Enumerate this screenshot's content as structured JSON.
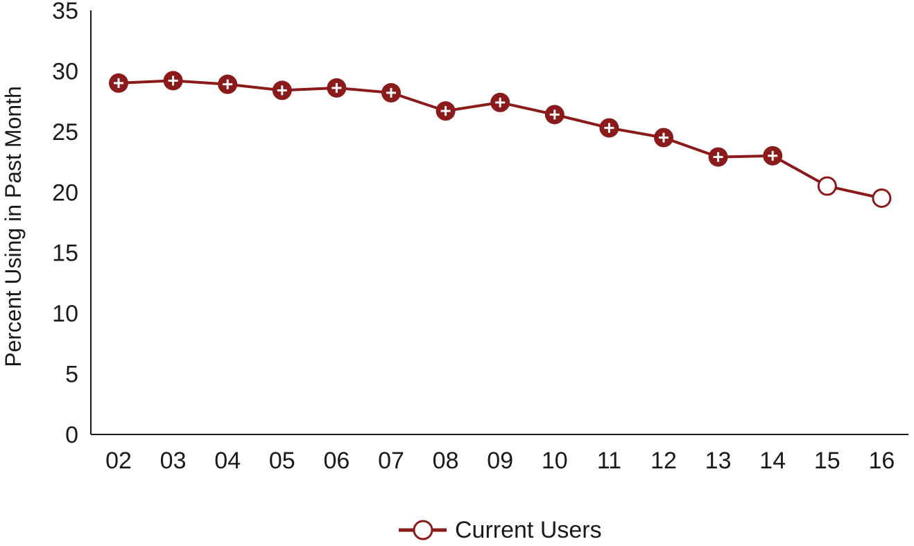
{
  "colors": {
    "series": "#8b1a1a",
    "axis": "#1a1a1a",
    "marker_cross": "#ffffff",
    "background": "#ffffff"
  },
  "chart_data": {
    "type": "line",
    "title": "",
    "xlabel": "",
    "ylabel": "Percent Using in Past Month",
    "ylim": [
      0,
      35
    ],
    "yticks": [
      0,
      5,
      10,
      15,
      20,
      25,
      30,
      35
    ],
    "categories": [
      "02",
      "03",
      "04",
      "05",
      "06",
      "07",
      "08",
      "09",
      "10",
      "11",
      "12",
      "13",
      "14",
      "15",
      "16"
    ],
    "grid": false,
    "legend_position": "bottom-center",
    "series": [
      {
        "name": "Current Users",
        "values": [
          29.0,
          29.2,
          28.9,
          28.4,
          28.6,
          28.2,
          26.7,
          27.4,
          26.4,
          25.3,
          24.5,
          22.9,
          23.0,
          20.5,
          19.5
        ],
        "marker_styles": [
          "filled-cross",
          "filled-cross",
          "filled-cross",
          "filled-cross",
          "filled-cross",
          "filled-cross",
          "filled-cross",
          "filled-cross",
          "filled-cross",
          "filled-cross",
          "filled-cross",
          "filled-cross",
          "filled-cross",
          "open",
          "open"
        ]
      }
    ]
  }
}
